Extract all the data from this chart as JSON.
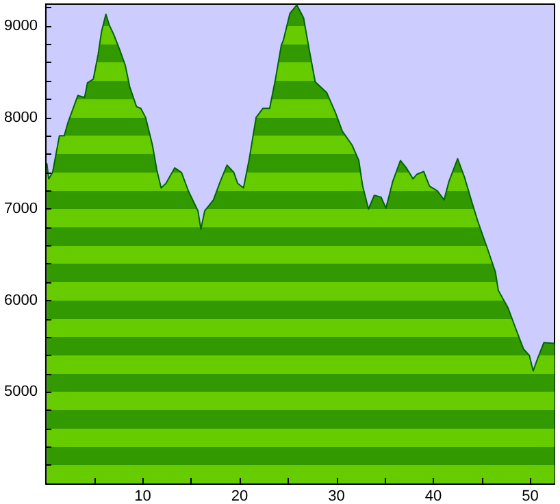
{
  "chart_data": {
    "type": "area",
    "x": [
      0.1,
      0.3,
      0.7,
      1.4,
      1.9,
      2.3,
      3.3,
      4.0,
      4.3,
      4.9,
      5.4,
      5.75,
      6.2,
      6.55,
      7.0,
      7.7,
      8.2,
      8.65,
      9.35,
      9.8,
      10.3,
      11.0,
      11.45,
      11.9,
      12.4,
      13.3,
      14.0,
      14.7,
      15.7,
      16.0,
      16.4,
      17.3,
      18.0,
      18.7,
      19.4,
      19.8,
      20.4,
      21.0,
      21.7,
      22.4,
      23.1,
      23.7,
      24.3,
      24.5,
      25.2,
      25.9,
      26.6,
      27.1,
      27.8,
      29.0,
      29.9,
      30.6,
      31.6,
      32.3,
      32.7,
      33.3,
      33.9,
      34.6,
      35.1,
      35.8,
      36.6,
      37.2,
      37.9,
      38.3,
      39.0,
      39.6,
      40.4,
      41.1,
      41.6,
      42.5,
      43.2,
      43.9,
      44.6,
      45.6,
      46.4,
      46.7,
      47.7,
      48.4,
      49.3,
      49.9,
      50.3,
      50.7,
      51.4,
      52.5
    ],
    "series": [
      {
        "color": "#006600",
        "values": [
          7500,
          7330,
          7400,
          7800,
          7800,
          7950,
          8240,
          8220,
          8380,
          8420,
          8690,
          8940,
          9130,
          9010,
          8910,
          8720,
          8570,
          8340,
          8120,
          8100,
          8000,
          7700,
          7430,
          7230,
          7280,
          7450,
          7400,
          7200,
          6980,
          6780,
          6980,
          7100,
          7300,
          7480,
          7400,
          7280,
          7230,
          7550,
          8000,
          8100,
          8100,
          8420,
          8790,
          8840,
          9140,
          9230,
          9090,
          8790,
          8390,
          8270,
          8050,
          7850,
          7700,
          7530,
          7250,
          7000,
          7150,
          7130,
          7010,
          7300,
          7530,
          7450,
          7330,
          7380,
          7410,
          7250,
          7200,
          7100,
          7300,
          7550,
          7350,
          7100,
          6860,
          6560,
          6310,
          6110,
          5920,
          5720,
          5470,
          5400,
          5230,
          5350,
          5540,
          5530
        ]
      }
    ],
    "xlim": [
      0,
      52.5
    ],
    "xticks": [
      {
        "value": 5,
        "label": null
      },
      10,
      {
        "value": 15,
        "label": null
      },
      20,
      {
        "value": 25,
        "label": null
      },
      30,
      {
        "value": 35,
        "label": null
      },
      40,
      {
        "value": 45,
        "label": null
      },
      50
    ],
    "ylim": [
      4000,
      9240
    ],
    "yticks": [
      {
        "value": 4200,
        "label": null
      },
      {
        "value": 4400,
        "label": null
      },
      {
        "value": 4600,
        "label": null
      },
      {
        "value": 4800,
        "label": null
      },
      5000,
      {
        "value": 5200,
        "label": null
      },
      {
        "value": 5400,
        "label": null
      },
      {
        "value": 5600,
        "label": null
      },
      {
        "value": 5800,
        "label": null
      },
      6000,
      {
        "value": 6200,
        "label": null
      },
      {
        "value": 6400,
        "label": null
      },
      {
        "value": 6600,
        "label": null
      },
      {
        "value": 6800,
        "label": null
      },
      7000,
      {
        "value": 7200,
        "label": null
      },
      {
        "value": 7400,
        "label": null
      },
      {
        "value": 7600,
        "label": null
      },
      {
        "value": 7800,
        "label": null
      },
      8000,
      {
        "value": 8200,
        "label": null
      },
      {
        "value": 8400,
        "label": null
      },
      {
        "value": 8600,
        "label": null
      },
      {
        "value": 8800,
        "label": null
      },
      9000,
      {
        "value": 9200,
        "label": null
      }
    ],
    "grid": false
  }
}
